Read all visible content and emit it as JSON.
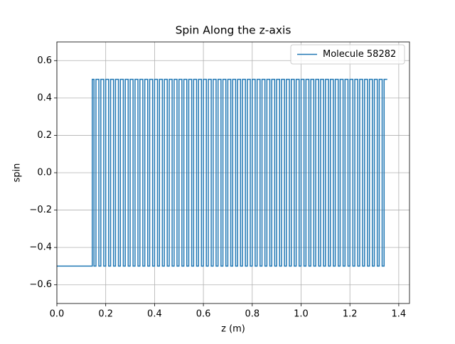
{
  "chart_data": {
    "type": "line",
    "title": "Spin Along the z-axis",
    "x_label": "z (m)",
    "y_label": "spin",
    "x": [
      0,
      0.145,
      0.145,
      0.152,
      0.152,
      0.16,
      0.16,
      0.172,
      0.172,
      0.18,
      0.18,
      0.192,
      0.192,
      0.2,
      0.2,
      0.212,
      0.212,
      0.22,
      0.22,
      0.232,
      0.232,
      0.24,
      0.24,
      0.252,
      0.252,
      0.26,
      0.26,
      0.272,
      0.272,
      0.28,
      0.28,
      0.292,
      0.292,
      0.3,
      0.3,
      0.312,
      0.312,
      0.32,
      0.32,
      0.332,
      0.332,
      0.34,
      0.34,
      0.352,
      0.352,
      0.36,
      0.36,
      0.372,
      0.372,
      0.38,
      0.38,
      0.392,
      0.392,
      0.4,
      0.4,
      0.412,
      0.412,
      0.42,
      0.42,
      0.432,
      0.432,
      0.44,
      0.44,
      0.452,
      0.452,
      0.46,
      0.46,
      0.472,
      0.472,
      0.48,
      0.48,
      0.492,
      0.492,
      0.5,
      0.5,
      0.512,
      0.512,
      0.52,
      0.52,
      0.532,
      0.532,
      0.54,
      0.54,
      0.552,
      0.552,
      0.56,
      0.56,
      0.572,
      0.572,
      0.58,
      0.58,
      0.592,
      0.592,
      0.6,
      0.6,
      0.612,
      0.612,
      0.62,
      0.62,
      0.632,
      0.632,
      0.64,
      0.64,
      0.652,
      0.652,
      0.66,
      0.66,
      0.672,
      0.672,
      0.68,
      0.68,
      0.692,
      0.692,
      0.7,
      0.7,
      0.712,
      0.712,
      0.72,
      0.72,
      0.732,
      0.732,
      0.74,
      0.74,
      0.752,
      0.752,
      0.76,
      0.76,
      0.772,
      0.772,
      0.78,
      0.78,
      0.792,
      0.792,
      0.8,
      0.8,
      0.812,
      0.812,
      0.82,
      0.82,
      0.832,
      0.832,
      0.84,
      0.84,
      0.852,
      0.852,
      0.86,
      0.86,
      0.872,
      0.872,
      0.88,
      0.88,
      0.892,
      0.892,
      0.9,
      0.9,
      0.912,
      0.912,
      0.92,
      0.92,
      0.932,
      0.932,
      0.94,
      0.94,
      0.952,
      0.952,
      0.96,
      0.96,
      0.972,
      0.972,
      0.98,
      0.98,
      0.992,
      0.992,
      1.0,
      1.0,
      1.012,
      1.012,
      1.02,
      1.02,
      1.032,
      1.032,
      1.04,
      1.04,
      1.052,
      1.052,
      1.06,
      1.06,
      1.072,
      1.072,
      1.08,
      1.08,
      1.092,
      1.092,
      1.1,
      1.1,
      1.112,
      1.112,
      1.12,
      1.12,
      1.132,
      1.132,
      1.14,
      1.14,
      1.152,
      1.152,
      1.16,
      1.16,
      1.172,
      1.172,
      1.18,
      1.18,
      1.192,
      1.192,
      1.2,
      1.2,
      1.212,
      1.212,
      1.22,
      1.22,
      1.232,
      1.232,
      1.24,
      1.24,
      1.252,
      1.252,
      1.26,
      1.26,
      1.272,
      1.272,
      1.28,
      1.28,
      1.292,
      1.292,
      1.3,
      1.3,
      1.312,
      1.312,
      1.32,
      1.32,
      1.332,
      1.332,
      1.34,
      1.34,
      1.353
    ],
    "series": [
      {
        "name": "Molecule 58282",
        "color": "#1f77b4",
        "values": [
          -0.5,
          -0.5,
          0.5,
          0.5,
          -0.5,
          -0.5,
          0.5,
          0.5,
          -0.5,
          -0.5,
          0.5,
          0.5,
          -0.5,
          -0.5,
          0.5,
          0.5,
          -0.5,
          -0.5,
          0.5,
          0.5,
          -0.5,
          -0.5,
          0.5,
          0.5,
          -0.5,
          -0.5,
          0.5,
          0.5,
          -0.5,
          -0.5,
          0.5,
          0.5,
          -0.5,
          -0.5,
          0.5,
          0.5,
          -0.5,
          -0.5,
          0.5,
          0.5,
          -0.5,
          -0.5,
          0.5,
          0.5,
          -0.5,
          -0.5,
          0.5,
          0.5,
          -0.5,
          -0.5,
          0.5,
          0.5,
          -0.5,
          -0.5,
          0.5,
          0.5,
          -0.5,
          -0.5,
          0.5,
          0.5,
          -0.5,
          -0.5,
          0.5,
          0.5,
          -0.5,
          -0.5,
          0.5,
          0.5,
          -0.5,
          -0.5,
          0.5,
          0.5,
          -0.5,
          -0.5,
          0.5,
          0.5,
          -0.5,
          -0.5,
          0.5,
          0.5,
          -0.5,
          -0.5,
          0.5,
          0.5,
          -0.5,
          -0.5,
          0.5,
          0.5,
          -0.5,
          -0.5,
          0.5,
          0.5,
          -0.5,
          -0.5,
          0.5,
          0.5,
          -0.5,
          -0.5,
          0.5,
          0.5,
          -0.5,
          -0.5,
          0.5,
          0.5,
          -0.5,
          -0.5,
          0.5,
          0.5,
          -0.5,
          -0.5,
          0.5,
          0.5,
          -0.5,
          -0.5,
          0.5,
          0.5,
          -0.5,
          -0.5,
          0.5,
          0.5,
          -0.5,
          -0.5,
          0.5,
          0.5,
          -0.5,
          -0.5,
          0.5,
          0.5,
          -0.5,
          -0.5,
          0.5,
          0.5,
          -0.5,
          -0.5,
          0.5,
          0.5,
          -0.5,
          -0.5,
          0.5,
          0.5,
          -0.5,
          -0.5,
          0.5,
          0.5,
          -0.5,
          -0.5,
          0.5,
          0.5,
          -0.5,
          -0.5,
          0.5,
          0.5,
          -0.5,
          -0.5,
          0.5,
          0.5,
          -0.5,
          -0.5,
          0.5,
          0.5,
          -0.5,
          -0.5,
          0.5,
          0.5,
          -0.5,
          -0.5,
          0.5,
          0.5,
          -0.5,
          -0.5,
          0.5,
          0.5,
          -0.5,
          -0.5,
          0.5,
          0.5,
          -0.5,
          -0.5,
          0.5,
          0.5,
          -0.5,
          -0.5,
          0.5,
          0.5,
          -0.5,
          -0.5,
          0.5,
          0.5,
          -0.5,
          -0.5,
          0.5,
          0.5,
          -0.5,
          -0.5,
          0.5,
          0.5,
          -0.5,
          -0.5,
          0.5,
          0.5,
          -0.5,
          -0.5,
          0.5,
          0.5,
          -0.5,
          -0.5,
          0.5,
          0.5,
          -0.5,
          -0.5,
          0.5,
          0.5,
          -0.5,
          -0.5,
          0.5,
          0.5,
          -0.5,
          -0.5,
          0.5,
          0.5,
          -0.5,
          -0.5,
          0.5,
          0.5,
          -0.5,
          -0.5,
          0.5,
          0.5,
          -0.5,
          -0.5,
          0.5,
          0.5,
          -0.5,
          -0.5,
          0.5,
          0.5,
          -0.5,
          -0.5,
          0.5,
          0.5,
          -0.5,
          -0.5,
          0.5,
          0.5
        ]
      }
    ],
    "xlim": [
      0,
      1.444
    ],
    "ylim": [
      -0.7,
      0.7
    ],
    "xticks": [
      {
        "value": 0,
        "label": "0.0"
      },
      0.2,
      0.4,
      0.6,
      0.8,
      {
        "value": 1,
        "label": "1.0"
      },
      1.2,
      1.4
    ],
    "yticks": [
      {
        "value": -0.6,
        "label": "−0.6"
      },
      {
        "value": -0.4,
        "label": "−0.4"
      },
      {
        "value": -0.2,
        "label": "−0.2"
      },
      {
        "value": 0,
        "label": "0.0"
      },
      0.2,
      0.4,
      0.6
    ],
    "grid": true,
    "legend": "upper right"
  }
}
